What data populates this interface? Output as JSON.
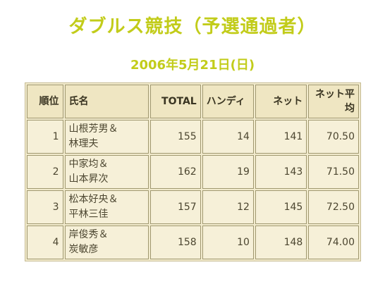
{
  "title": "ダブルス競技（予選通過者）",
  "date": "2006年5月21日(日)",
  "headers": {
    "rank": "順位",
    "name": "氏名",
    "total": "TOTAL",
    "handicap": "ハンディ",
    "net": "ネット",
    "net_avg_line1": "ネット平",
    "net_avg_line2": "均"
  },
  "rows": [
    {
      "rank": "1",
      "name1": "山根芳男＆",
      "name2": "林理夫",
      "total": "155",
      "handicap": "14",
      "net": "141",
      "net_avg": "70.50"
    },
    {
      "rank": "2",
      "name1": "中家均＆",
      "name2": "山本昇次",
      "total": "162",
      "handicap": "19",
      "net": "143",
      "net_avg": "71.50"
    },
    {
      "rank": "3",
      "name1": "松本好央＆",
      "name2": "平林三佳",
      "total": "157",
      "handicap": "12",
      "net": "145",
      "net_avg": "72.50"
    },
    {
      "rank": "4",
      "name1": "岸俊秀＆",
      "name2": "炭敏彦",
      "total": "158",
      "handicap": "10",
      "net": "148",
      "net_avg": "74.00"
    }
  ]
}
